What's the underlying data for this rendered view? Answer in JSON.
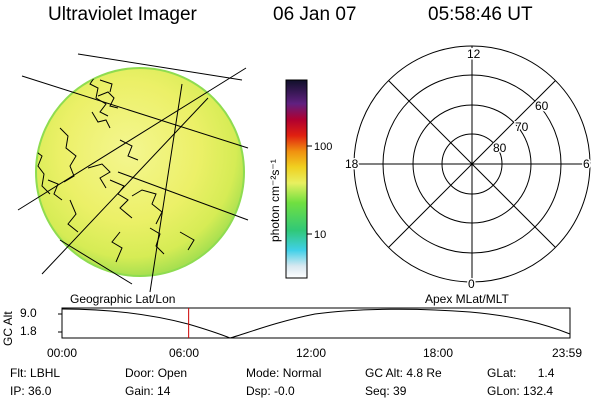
{
  "header": {
    "instrument": "Ultraviolet Imager",
    "date": "06 Jan 07",
    "time": "05:58:46 UT"
  },
  "colorbar": {
    "unit_label": "photon cm⁻²s⁻¹",
    "ticks": [
      "100",
      "10"
    ],
    "scale": "log"
  },
  "polar_plot": {
    "mlt_labels": [
      "12",
      "18",
      "6",
      "0"
    ],
    "mlat_labels": [
      "60",
      "70",
      "80"
    ]
  },
  "footer_labels": {
    "left": "Geographic Lat/Lon",
    "right": "Apex MLat/MLT"
  },
  "altitude_strip": {
    "ylabel": "GC Alt",
    "y_ticks": [
      "9.0",
      "1.8"
    ],
    "x_ticks": [
      "00:00",
      "06:00",
      "12:00",
      "18:00",
      "23:59"
    ],
    "current_time_marker": "05:58:46",
    "marker_color": "#cc0000"
  },
  "info": {
    "row1": [
      {
        "label": "Flt:",
        "value": "LBHL"
      },
      {
        "label": "Door:",
        "value": "Open"
      },
      {
        "label": "Mode:",
        "value": "Normal"
      },
      {
        "label": "GC Alt:",
        "value": "4.8 Re"
      },
      {
        "label": "GLat:",
        "value": "1.4"
      }
    ],
    "row2": [
      {
        "label": "IP:",
        "value": "36.0"
      },
      {
        "label": "Gain:",
        "value": "14"
      },
      {
        "label": "Dsp:",
        "value": "-0.0"
      },
      {
        "label": "Seq:",
        "value": "39"
      },
      {
        "label": "GLon:",
        "value": "132.4"
      }
    ]
  },
  "colors": {
    "disk_fill": "#e8f060",
    "disk_edge": "#8fdc50"
  }
}
